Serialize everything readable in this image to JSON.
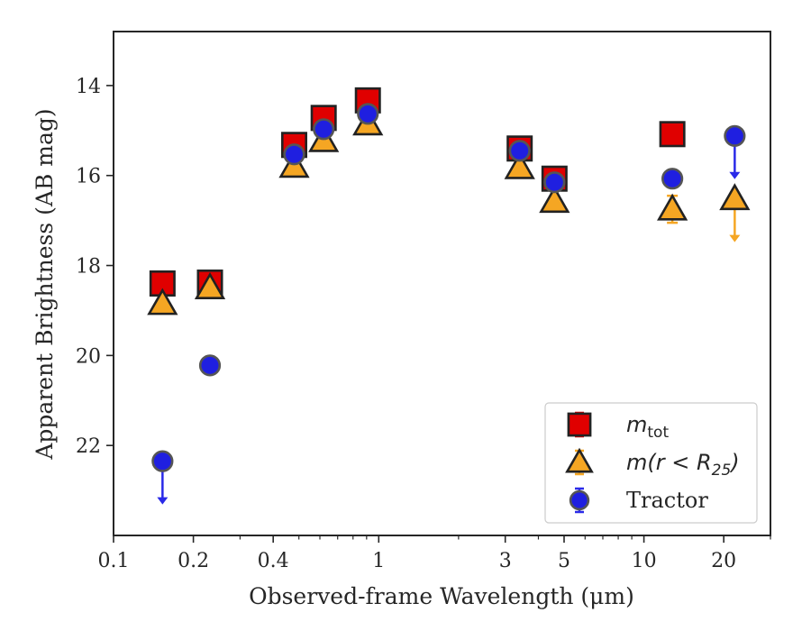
{
  "chart_data": {
    "type": "scatter",
    "title": "",
    "xlabel": "Observed-frame Wavelength (μm)",
    "ylabel": "Apparent Brightness (AB mag)",
    "xscale": "log",
    "yinverted": true,
    "xlim": [
      0.1,
      30
    ],
    "ylim": [
      24.0,
      12.8
    ],
    "xticks": [
      {
        "value": 0.1,
        "label": "0.1"
      },
      {
        "value": 0.2,
        "label": "0.2"
      },
      {
        "value": 0.4,
        "label": "0.4"
      },
      {
        "value": 1,
        "label": "1"
      },
      {
        "value": 3,
        "label": "3"
      },
      {
        "value": 5,
        "label": "5"
      },
      {
        "value": 10,
        "label": "10"
      },
      {
        "value": 20,
        "label": "20"
      }
    ],
    "yticks": [
      {
        "value": 14,
        "label": "14"
      },
      {
        "value": 16,
        "label": "16"
      },
      {
        "value": 18,
        "label": "18"
      },
      {
        "value": 20,
        "label": "20"
      },
      {
        "value": 22,
        "label": "22"
      }
    ],
    "grid": false,
    "legend_position": "bottom-right",
    "series": [
      {
        "name": "m_tot",
        "legend_main": "m",
        "legend_sub": "tot",
        "legend_tail": "",
        "marker": "square",
        "color": "#e00000",
        "errcolor": "#e00000",
        "points": [
          {
            "x": 0.153,
            "y": 18.4
          },
          {
            "x": 0.231,
            "y": 18.38
          },
          {
            "x": 0.48,
            "y": 15.32
          },
          {
            "x": 0.62,
            "y": 14.72
          },
          {
            "x": 0.91,
            "y": 14.33
          },
          {
            "x": 3.4,
            "y": 15.4
          },
          {
            "x": 4.6,
            "y": 16.07
          },
          {
            "x": 12.8,
            "y": 15.08
          }
        ]
      },
      {
        "name": "m(r < R25)",
        "legend_main": "m(r < R",
        "legend_sub": "25",
        "legend_tail": ")",
        "marker": "triangle",
        "color": "#f5a623",
        "errcolor": "#f5a623",
        "points": [
          {
            "x": 0.153,
            "y": 18.85
          },
          {
            "x": 0.231,
            "y": 18.5
          },
          {
            "x": 0.48,
            "y": 15.8
          },
          {
            "x": 0.62,
            "y": 15.23
          },
          {
            "x": 0.91,
            "y": 14.86
          },
          {
            "x": 3.4,
            "y": 15.83
          },
          {
            "x": 4.6,
            "y": 16.58
          },
          {
            "x": 12.8,
            "y": 16.75,
            "err": 0.3
          },
          {
            "x": 22,
            "y": 16.52,
            "upper_limit": true
          }
        ]
      },
      {
        "name": "Tractor",
        "legend_main": "Tractor",
        "legend_sub": "",
        "legend_tail": "",
        "marker": "circle",
        "color": "#1f1fe0",
        "errcolor": "#2a2ae8",
        "points": [
          {
            "x": 0.153,
            "y": 22.35,
            "upper_limit": true
          },
          {
            "x": 0.231,
            "y": 20.22
          },
          {
            "x": 0.48,
            "y": 15.53
          },
          {
            "x": 0.62,
            "y": 14.97
          },
          {
            "x": 0.91,
            "y": 14.63
          },
          {
            "x": 3.4,
            "y": 15.45
          },
          {
            "x": 4.6,
            "y": 16.15
          },
          {
            "x": 12.8,
            "y": 16.07
          },
          {
            "x": 22,
            "y": 15.12,
            "upper_limit": true
          }
        ]
      }
    ]
  }
}
